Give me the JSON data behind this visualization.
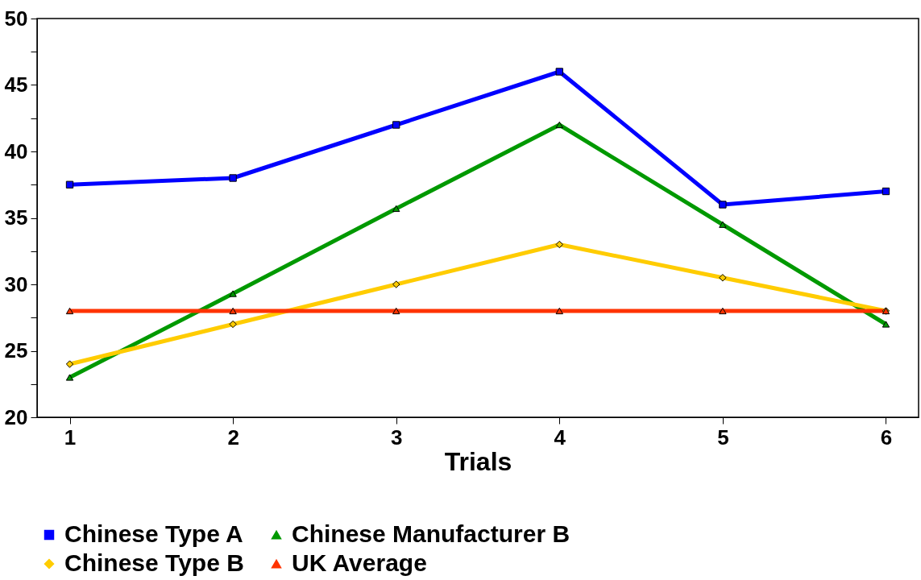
{
  "chart_data": {
    "type": "line",
    "xlabel": "Trials",
    "x": [
      1,
      2,
      3,
      4,
      5,
      6
    ],
    "xlim": [
      0.8,
      6.2
    ],
    "xticks": [
      1,
      2,
      3,
      4,
      5,
      6
    ],
    "ylim": [
      20,
      50
    ],
    "yticks": [
      20,
      {
        "value": 22.5,
        "label": null
      },
      25,
      {
        "value": 27.5,
        "label": null
      },
      30,
      {
        "value": 32.5,
        "label": null
      },
      35,
      {
        "value": 37.5,
        "label": null
      },
      40,
      {
        "value": 42.5,
        "label": null
      },
      45,
      {
        "value": 47.5,
        "label": null
      },
      50
    ],
    "grid": false,
    "legend": "bottom",
    "line_style": "solid",
    "series": [
      {
        "name": "Chinese Type A",
        "color": "#0000ff",
        "marker": "square",
        "values": [
          37.5,
          38,
          42,
          46,
          36,
          37
        ]
      },
      {
        "name": "Chinese Manufacturer B",
        "color": "#009900",
        "marker": "triangle",
        "values": [
          23,
          29.3,
          35.7,
          42,
          34.5,
          27
        ]
      },
      {
        "name": "Chinese Type B",
        "color": "#ffcc00",
        "marker": "diamond",
        "values": [
          24,
          27,
          30,
          33,
          30.5,
          28
        ]
      },
      {
        "name": "UK Average",
        "color": "#ff3300",
        "marker": "triangle",
        "values": [
          28,
          28,
          28,
          28,
          28,
          28
        ]
      }
    ]
  }
}
